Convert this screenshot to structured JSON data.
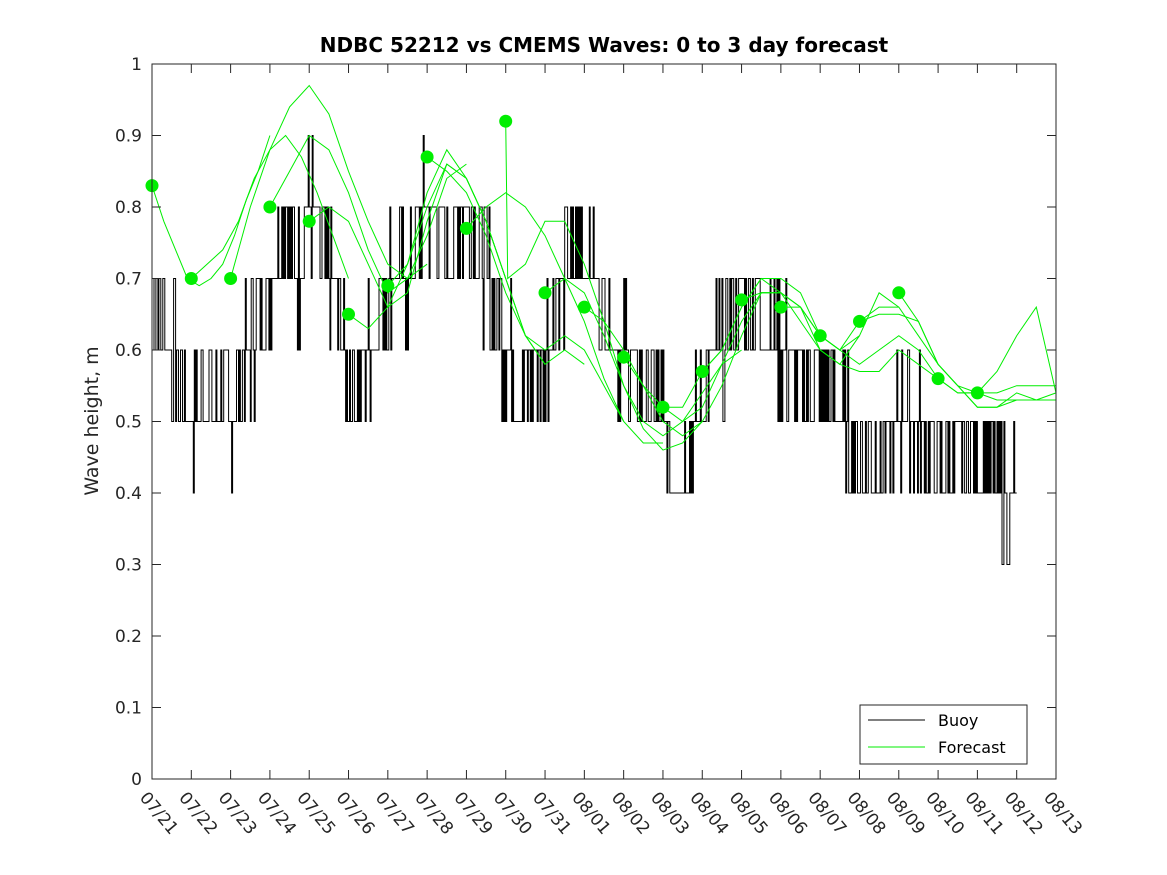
{
  "chart_data": {
    "type": "line",
    "title": "NDBC 52212 vs CMEMS Waves: 0 to 3 day forecast",
    "xlabel": "",
    "ylabel": "Wave height, m",
    "ylim": [
      0,
      1
    ],
    "yticks": [
      "0",
      "0.1",
      "0.2",
      "0.3",
      "0.4",
      "0.5",
      "0.6",
      "0.7",
      "0.8",
      "0.9",
      "1"
    ],
    "xlim": [
      "07/21",
      "08/13"
    ],
    "xticks": [
      "07/21",
      "07/22",
      "07/23",
      "07/24",
      "07/25",
      "07/26",
      "07/27",
      "07/28",
      "07/29",
      "07/30",
      "07/31",
      "08/01",
      "08/02",
      "08/03",
      "08/04",
      "08/05",
      "08/06",
      "08/07",
      "08/08",
      "08/09",
      "08/10",
      "08/11",
      "08/12",
      "08/13"
    ],
    "grid": false,
    "legend_position": "bottom-right",
    "colors": {
      "buoy": "#000000",
      "forecast": "#00ee00",
      "marker": "#00ee00"
    },
    "legend": [
      {
        "label": "Buoy",
        "color": "#000000"
      },
      {
        "label": "Forecast",
        "color": "#00ee00"
      }
    ],
    "series": [
      {
        "name": "Buoy",
        "color": "#000000",
        "x_date": [
          "07/21",
          "07/21",
          "07/22",
          "07/22",
          "07/22",
          "07/23",
          "07/23",
          "07/24",
          "07/24",
          "07/24",
          "07/25",
          "07/25",
          "07/26",
          "07/26",
          "07/27",
          "07/27",
          "07/28",
          "07/28",
          "07/29",
          "07/29",
          "07/30",
          "07/30",
          "07/31",
          "07/31",
          "08/01",
          "08/01",
          "08/02",
          "08/02",
          "08/03",
          "08/03",
          "08/04",
          "08/04",
          "08/05",
          "08/05",
          "08/06",
          "08/06",
          "08/07",
          "08/07",
          "08/08",
          "08/08",
          "08/09",
          "08/09",
          "08/10",
          "08/10",
          "08/11",
          "08/11",
          "08/12",
          "08/12"
        ],
        "x": [
          0.0,
          0.5,
          0.7,
          1.0,
          1.5,
          2.0,
          2.5,
          3.0,
          3.3,
          3.7,
          4.0,
          4.6,
          5.0,
          5.5,
          6.0,
          6.5,
          7.0,
          7.5,
          8.0,
          8.5,
          9.0,
          9.5,
          10.0,
          10.5,
          11.0,
          11.5,
          12.0,
          12.5,
          13.0,
          13.3,
          13.7,
          14.0,
          14.5,
          15.0,
          15.5,
          16.0,
          16.5,
          17.0,
          17.5,
          18.0,
          18.5,
          19.0,
          19.5,
          20.0,
          20.5,
          21.0,
          21.5,
          22.0
        ],
        "values": [
          0.7,
          0.6,
          0.55,
          0.5,
          0.55,
          0.5,
          0.6,
          0.7,
          0.8,
          0.7,
          0.8,
          0.7,
          0.55,
          0.6,
          0.7,
          0.7,
          0.8,
          0.75,
          0.8,
          0.7,
          0.6,
          0.55,
          0.6,
          0.7,
          0.75,
          0.65,
          0.6,
          0.55,
          0.5,
          0.4,
          0.45,
          0.55,
          0.6,
          0.7,
          0.65,
          0.6,
          0.55,
          0.55,
          0.5,
          0.45,
          0.45,
          0.5,
          0.5,
          0.45,
          0.45,
          0.45,
          0.4,
          0.4
        ]
      },
      {
        "name": "Forecast",
        "color": "#00ee00",
        "runs": [
          {
            "x": [
              0.0,
              0.3,
              0.6,
              0.9,
              1.2,
              1.5,
              1.8,
              2.1,
              2.4,
              2.7,
              3.0
            ],
            "values": [
              0.83,
              0.78,
              0.74,
              0.7,
              0.69,
              0.7,
              0.72,
              0.76,
              0.81,
              0.85,
              0.9
            ]
          },
          {
            "x": [
              1.0,
              1.4,
              1.8,
              2.2,
              2.6,
              3.0,
              3.4,
              3.8,
              4.2,
              4.6,
              5.0
            ],
            "values": [
              0.7,
              0.72,
              0.74,
              0.78,
              0.84,
              0.88,
              0.9,
              0.87,
              0.82,
              0.76,
              0.7
            ]
          },
          {
            "x": [
              2.0,
              2.5,
              3.0,
              3.5,
              4.0,
              4.5,
              5.0,
              5.5,
              6.0,
              6.5,
              7.0
            ],
            "values": [
              0.7,
              0.8,
              0.88,
              0.94,
              0.97,
              0.93,
              0.85,
              0.78,
              0.72,
              0.7,
              0.72
            ]
          },
          {
            "x": [
              3.0,
              3.5,
              4.0,
              4.5,
              5.0,
              5.5,
              6.0,
              6.5,
              7.0,
              7.5,
              8.0
            ],
            "values": [
              0.8,
              0.85,
              0.9,
              0.88,
              0.82,
              0.74,
              0.68,
              0.7,
              0.76,
              0.84,
              0.86
            ]
          },
          {
            "x": [
              4.0,
              4.5,
              5.0,
              5.5,
              6.0,
              6.5,
              7.0,
              7.5,
              8.0,
              8.5,
              9.0
            ],
            "values": [
              0.78,
              0.8,
              0.78,
              0.72,
              0.66,
              0.68,
              0.78,
              0.86,
              0.84,
              0.78,
              0.7
            ]
          },
          {
            "x": [
              5.0,
              5.5,
              6.0,
              6.5,
              7.0,
              7.5,
              8.0,
              8.5,
              9.0,
              9.5,
              10.0
            ],
            "values": [
              0.65,
              0.63,
              0.66,
              0.72,
              0.8,
              0.86,
              0.84,
              0.78,
              0.7,
              0.62,
              0.58
            ]
          },
          {
            "x": [
              6.0,
              6.5,
              7.0,
              7.5,
              8.0,
              8.5,
              9.0,
              9.5,
              10.0,
              10.5,
              11.0
            ],
            "values": [
              0.69,
              0.72,
              0.82,
              0.88,
              0.84,
              0.78,
              0.7,
              0.62,
              0.58,
              0.6,
              0.58
            ]
          },
          {
            "x": [
              7.0,
              7.5,
              8.0,
              8.5,
              9.0,
              9.5,
              10.0,
              10.5,
              11.0,
              11.5,
              12.0
            ],
            "values": [
              0.87,
              0.85,
              0.82,
              0.76,
              0.68,
              0.62,
              0.6,
              0.62,
              0.6,
              0.55,
              0.5
            ]
          },
          {
            "x": [
              8.0,
              8.5,
              9.0,
              9.5,
              10.0,
              10.5,
              11.0,
              11.5,
              12.0,
              12.5,
              13.0
            ],
            "values": [
              0.77,
              0.8,
              0.82,
              0.8,
              0.76,
              0.7,
              0.64,
              0.56,
              0.5,
              0.47,
              0.47
            ]
          },
          {
            "x": [
              9.0,
              9.05,
              9.5,
              10.0,
              10.5,
              11.0,
              11.5,
              12.0,
              12.5,
              13.0,
              13.5,
              14.0
            ],
            "values": [
              0.92,
              0.7,
              0.72,
              0.78,
              0.78,
              0.72,
              0.64,
              0.55,
              0.49,
              0.46,
              0.47,
              0.5
            ]
          },
          {
            "x": [
              10.0,
              10.5,
              11.0,
              11.5,
              12.0,
              12.5,
              13.0,
              13.5,
              14.0,
              14.5,
              15.0
            ],
            "values": [
              0.68,
              0.7,
              0.68,
              0.62,
              0.55,
              0.5,
              0.48,
              0.5,
              0.54,
              0.58,
              0.6
            ]
          },
          {
            "x": [
              11.0,
              11.5,
              12.0,
              12.5,
              13.0,
              13.5,
              14.0,
              14.5,
              15.0,
              15.5,
              16.0
            ],
            "values": [
              0.66,
              0.64,
              0.6,
              0.55,
              0.5,
              0.48,
              0.5,
              0.55,
              0.62,
              0.68,
              0.68
            ]
          },
          {
            "x": [
              12.0,
              12.5,
              13.0,
              13.5,
              14.0,
              14.5,
              15.0,
              15.5,
              16.0,
              16.5,
              17.0
            ],
            "values": [
              0.59,
              0.55,
              0.52,
              0.5,
              0.52,
              0.58,
              0.64,
              0.68,
              0.68,
              0.66,
              0.62
            ]
          },
          {
            "x": [
              13.0,
              13.5,
              14.0,
              14.5,
              15.0,
              15.5,
              16.0,
              16.5,
              17.0,
              17.5,
              18.0
            ],
            "values": [
              0.52,
              0.52,
              0.57,
              0.6,
              0.66,
              0.7,
              0.68,
              0.64,
              0.6,
              0.58,
              0.62
            ]
          },
          {
            "x": [
              14.0,
              14.5,
              15.0,
              15.5,
              16.0,
              16.5,
              17.0,
              17.5,
              18.0,
              18.5,
              19.0
            ],
            "values": [
              0.57,
              0.6,
              0.66,
              0.7,
              0.7,
              0.68,
              0.62,
              0.6,
              0.62,
              0.68,
              0.66
            ]
          },
          {
            "x": [
              15.0,
              15.5,
              16.0,
              16.5,
              17.0,
              17.5,
              18.0,
              18.5,
              19.0,
              19.5,
              20.0
            ],
            "values": [
              0.67,
              0.68,
              0.68,
              0.66,
              0.6,
              0.58,
              0.57,
              0.57,
              0.6,
              0.58,
              0.56
            ]
          },
          {
            "x": [
              16.0,
              16.5,
              17.0,
              17.5,
              18.0,
              18.5,
              19.0,
              19.5,
              20.0,
              20.5,
              21.0
            ],
            "values": [
              0.66,
              0.66,
              0.62,
              0.6,
              0.58,
              0.6,
              0.62,
              0.6,
              0.56,
              0.54,
              0.54
            ]
          },
          {
            "x": [
              17.0,
              17.5,
              18.0,
              18.5,
              19.0,
              19.5,
              20.0,
              20.5,
              21.0,
              21.5,
              22.0
            ],
            "values": [
              0.62,
              0.6,
              0.64,
              0.66,
              0.66,
              0.62,
              0.58,
              0.55,
              0.52,
              0.52,
              0.53
            ]
          },
          {
            "x": [
              18.0,
              18.5,
              19.0,
              19.5,
              20.0,
              20.5,
              21.0,
              21.5,
              22.0,
              22.5,
              23.0
            ],
            "values": [
              0.64,
              0.65,
              0.65,
              0.64,
              0.58,
              0.55,
              0.52,
              0.52,
              0.54,
              0.53,
              0.53
            ]
          },
          {
            "x": [
              19.0,
              19.5,
              20.0,
              20.5,
              21.0,
              21.5,
              22.0,
              22.5,
              23.0
            ],
            "values": [
              0.68,
              0.64,
              0.58,
              0.55,
              0.54,
              0.57,
              0.62,
              0.66,
              0.54
            ]
          },
          {
            "x": [
              20.0,
              20.5,
              21.0,
              21.5,
              22.0,
              22.5,
              23.0
            ],
            "values": [
              0.56,
              0.54,
              0.54,
              0.54,
              0.55,
              0.55,
              0.55
            ]
          },
          {
            "x": [
              21.0,
              21.5,
              22.0,
              22.5,
              23.0
            ],
            "values": [
              0.54,
              0.53,
              0.53,
              0.53,
              0.54
            ]
          }
        ],
        "markers": {
          "x": [
            0,
            1,
            2,
            3,
            4,
            5,
            6,
            7,
            8,
            9,
            10,
            11,
            12,
            13,
            14,
            15,
            16,
            17,
            18,
            19,
            20,
            21
          ],
          "values": [
            0.83,
            0.7,
            0.7,
            0.8,
            0.78,
            0.65,
            0.69,
            0.87,
            0.77,
            0.92,
            0.68,
            0.66,
            0.59,
            0.52,
            0.57,
            0.67,
            0.66,
            0.62,
            0.64,
            0.68,
            0.56,
            0.54
          ]
        }
      }
    ]
  }
}
